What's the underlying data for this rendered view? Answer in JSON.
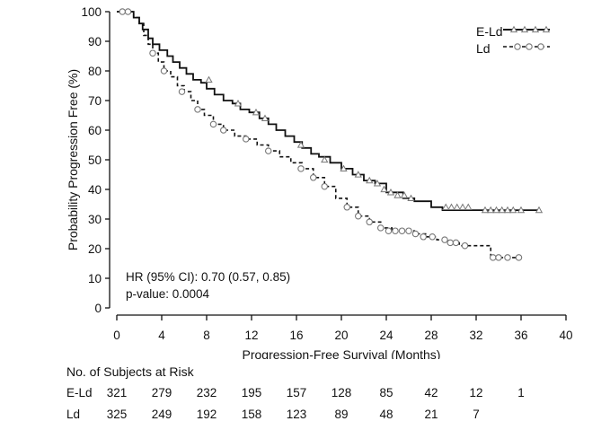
{
  "chart_data": {
    "type": "line",
    "title": "",
    "xlabel": "Progression-Free Survival (Months)",
    "ylabel": "Probability Progression Free (%)",
    "xlim": [
      0,
      40
    ],
    "ylim": [
      0,
      100
    ],
    "xticks": [
      "0",
      "4",
      "8",
      "12",
      "16",
      "20",
      "24",
      "28",
      "32",
      "36",
      "40"
    ],
    "yticks": [
      "0",
      "10",
      "20",
      "30",
      "40",
      "50",
      "60",
      "70",
      "80",
      "90",
      "100"
    ],
    "grid": false,
    "legend_position": "top-right",
    "series": [
      {
        "name": "E-Ld",
        "style": "solid",
        "marker": "triangle",
        "x": [
          0,
          1,
          1.5,
          2,
          2.3,
          2.8,
          3.2,
          3.8,
          4.5,
          5,
          5.6,
          6.2,
          6.8,
          7.5,
          8,
          8.7,
          9.5,
          10.3,
          11,
          11.8,
          12.7,
          13.5,
          14.2,
          15,
          15.8,
          16.5,
          17.3,
          18,
          19,
          20,
          21,
          22,
          23,
          24,
          25.5,
          26.5,
          28,
          29,
          31,
          33,
          35,
          37.6
        ],
        "y": [
          100,
          100,
          98,
          96,
          94,
          91,
          89,
          87,
          85,
          83,
          81,
          79,
          77,
          76,
          74,
          72,
          70,
          69,
          67,
          66,
          64,
          62,
          60,
          58,
          56,
          54,
          52,
          51,
          49,
          47,
          45,
          43,
          42,
          39,
          37,
          36,
          34,
          33,
          33,
          33,
          33,
          33
        ],
        "markers_x": [
          8.2,
          10.8,
          12.4,
          13.2,
          16.4,
          18.5,
          20.2,
          21.5,
          22.5,
          23.2,
          23.8,
          24.4,
          25,
          25.6,
          26.2,
          29.3,
          29.8,
          30.3,
          30.8,
          31.3,
          32.8,
          33.3,
          33.8,
          34.3,
          34.8,
          35.3,
          36,
          37.6
        ],
        "markers_y": [
          77,
          69,
          66,
          64,
          55,
          50,
          47,
          45,
          43,
          42,
          40,
          39,
          38,
          38,
          37,
          34,
          34,
          34,
          34,
          34,
          33,
          33,
          33,
          33,
          33,
          33,
          33,
          33
        ]
      },
      {
        "name": "Ld",
        "style": "dashed",
        "marker": "circle",
        "x": [
          0,
          1,
          1.5,
          2,
          2.4,
          2.8,
          3.2,
          3.7,
          4.2,
          4.8,
          5.4,
          6,
          6.6,
          7.2,
          7.8,
          8.6,
          9.5,
          10.5,
          11.5,
          12.5,
          13.5,
          14.5,
          15.5,
          16.5,
          17.5,
          18.5,
          19.5,
          20.5,
          21.5,
          22.5,
          23.5,
          24.5,
          25.5,
          26.5,
          27.5,
          28.5,
          29.5,
          30.5,
          31.5,
          32.5,
          33.3,
          33.8,
          35.8
        ],
        "y": [
          100,
          100,
          98,
          96,
          92,
          89,
          86,
          83,
          80,
          78,
          75,
          73,
          70,
          67,
          65,
          62,
          60,
          58,
          57,
          55,
          53,
          51,
          49,
          47,
          44,
          41,
          37,
          34,
          31,
          29,
          27,
          26,
          26,
          25,
          24,
          23,
          22,
          21,
          21,
          21,
          17,
          17,
          17
        ],
        "markers_x": [
          0.5,
          1,
          3.2,
          4.2,
          5.8,
          7.2,
          8.6,
          9.5,
          11.5,
          13.5,
          16.4,
          17.5,
          18.5,
          20.5,
          21.5,
          22.5,
          23.5,
          24.2,
          24.8,
          25.4,
          26,
          26.6,
          27.3,
          28.1,
          29.2,
          29.7,
          30.2,
          31,
          33.5,
          34,
          34.8,
          35.8
        ],
        "markers_y": [
          100,
          100,
          86,
          80,
          73,
          67,
          62,
          60,
          57,
          53,
          47,
          44,
          41,
          34,
          31,
          29,
          27,
          26,
          26,
          26,
          26,
          25,
          24,
          24,
          23,
          22,
          22,
          21,
          17,
          17,
          17,
          17
        ]
      }
    ],
    "annotations": {
      "hr_text": "HR (95% CI): 0.70 (0.57, 0.85)",
      "p_text": "p-value: 0.0004"
    },
    "risk_table": {
      "title": "No. of Subjects at Risk",
      "time_points": [
        0,
        4,
        8,
        12,
        16,
        20,
        24,
        28,
        32,
        36
      ],
      "rows": [
        {
          "label": "E-Ld",
          "values": [
            "321",
            "279",
            "232",
            "195",
            "157",
            "128",
            "85",
            "42",
            "12",
            "1"
          ]
        },
        {
          "label": "Ld",
          "values": [
            "325",
            "249",
            "192",
            "158",
            "123",
            "89",
            "48",
            "21",
            "7"
          ]
        }
      ]
    }
  }
}
